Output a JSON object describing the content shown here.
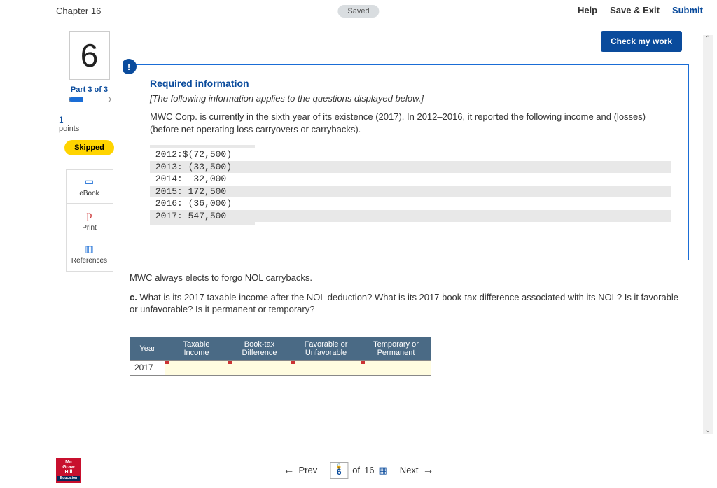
{
  "header": {
    "chapter": "Chapter 16",
    "saved": "Saved",
    "help": "Help",
    "save_exit": "Save & Exit",
    "submit": "Submit"
  },
  "sidebar": {
    "question_number": "6",
    "part_label": "Part 3 of 3",
    "progress_pct": 33,
    "points_value": "1",
    "points_label": "points",
    "skipped": "Skipped",
    "ebook": "eBook",
    "print": "Print",
    "references": "References"
  },
  "content": {
    "check_work": "Check my work",
    "req_title": "Required information",
    "req_sub": "[The following information applies to the questions displayed below.]",
    "req_body": "MWC Corp. is currently in the sixth year of its existence (2017). In 2012–2016, it reported the following income and (losses) (before net operating loss carryovers or carrybacks).",
    "year_rows": [
      " 2012:$(72,500)",
      " 2013: (33,500)",
      " 2014:  32,000",
      " 2015: 172,500",
      " 2016: (36,000)",
      " 2017: 547,500"
    ],
    "elects": "MWC always elects to forgo NOL carrybacks.",
    "question_c": "c. What is its 2017 taxable income after the NOL deduction? What is its 2017 book-tax difference associated with its NOL? Is it favorable or unfavorable? Is it permanent or temporary?",
    "table": {
      "headers": [
        "Year",
        "Taxable Income",
        "Book-tax Difference",
        "Favorable or Unfavorable",
        "Temporary or Permanent"
      ],
      "row_year": "2017"
    }
  },
  "footer": {
    "prev": "Prev",
    "current": "6",
    "total": "16",
    "of": "of",
    "next": "Next",
    "logo_lines": [
      "Mc",
      "Graw",
      "Hill"
    ],
    "logo_edu": "Education"
  }
}
